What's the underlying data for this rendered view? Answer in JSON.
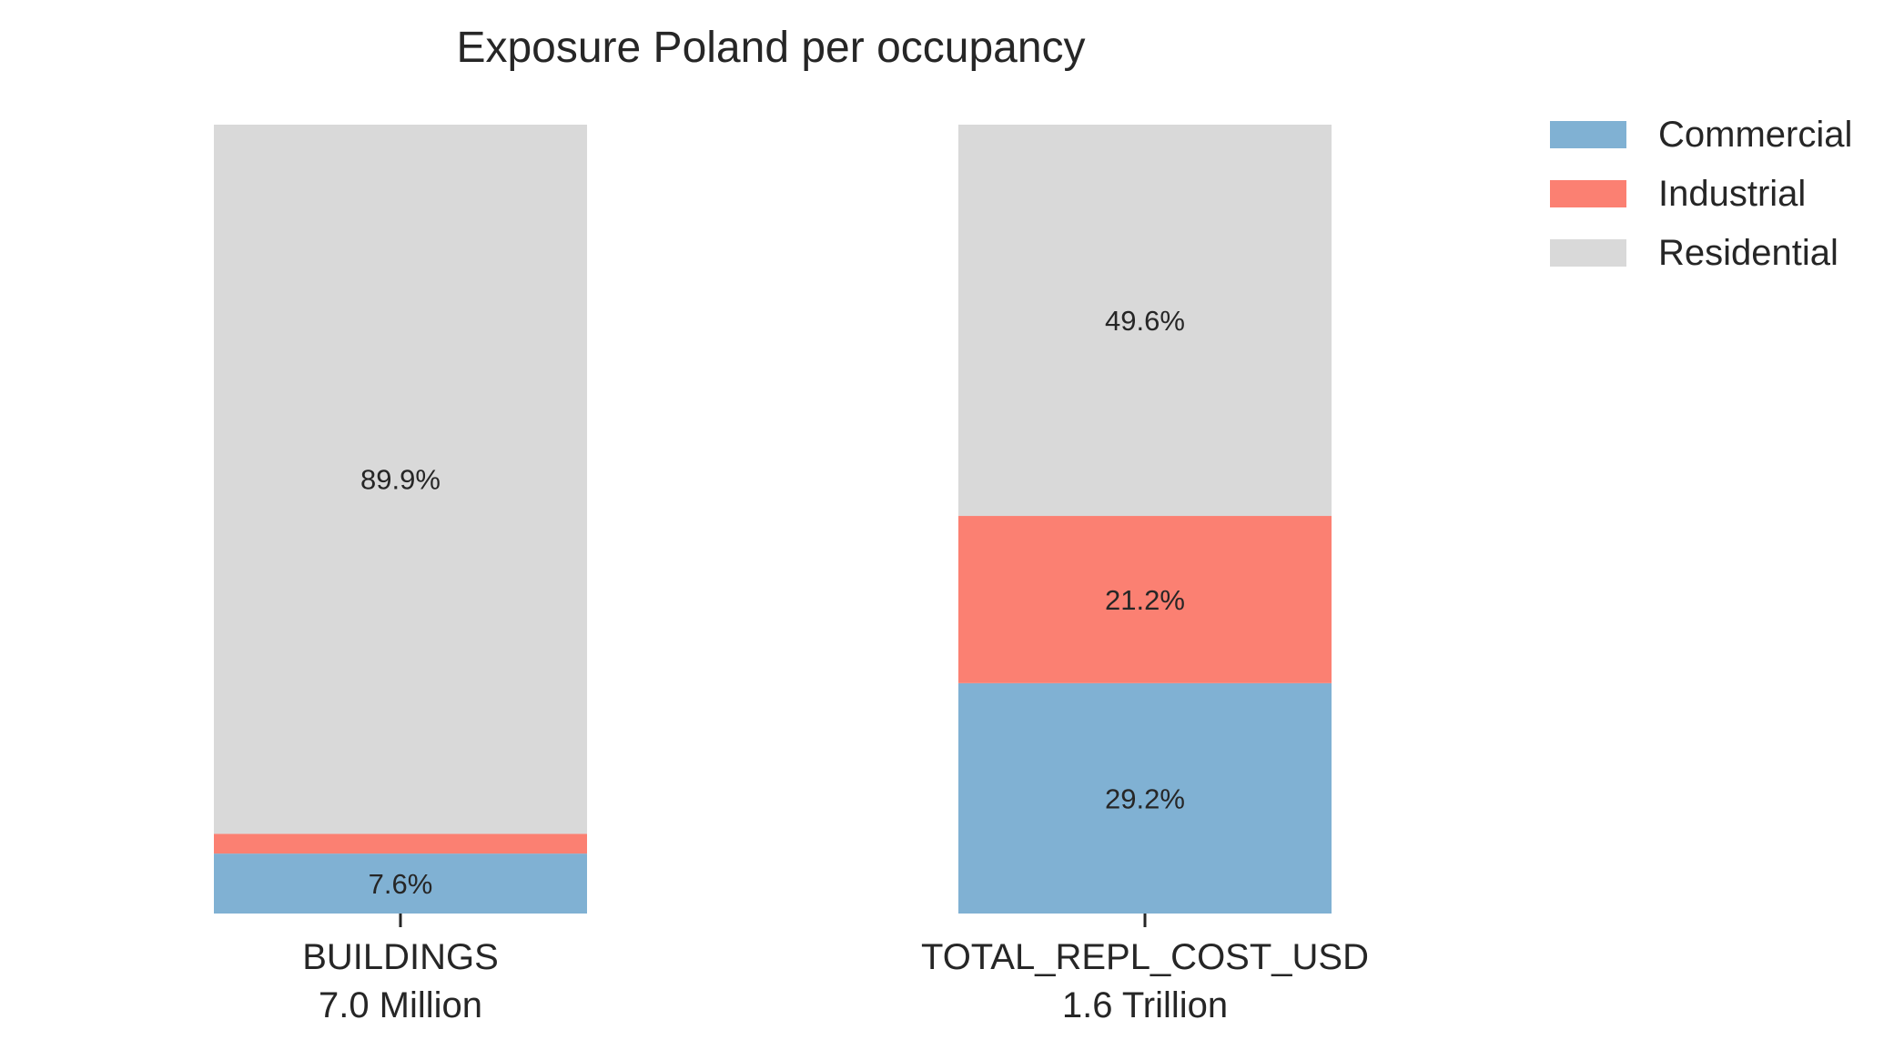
{
  "chart_data": {
    "type": "bar",
    "stacked": true,
    "title": "Exposure Poland per occupancy",
    "categories": [
      "BUILDINGS",
      "TOTAL_REPL_COST_USD"
    ],
    "category_totals": [
      "7.0 Million",
      "1.6 Trillion"
    ],
    "series": [
      {
        "name": "Commercial",
        "color": "#80b1d3",
        "values": [
          7.6,
          29.2
        ],
        "labels": [
          "7.6%",
          "29.2%"
        ]
      },
      {
        "name": "Industrial",
        "color": "#fb8072",
        "values": [
          2.5,
          21.2
        ],
        "labels": [
          "",
          "21.2%"
        ]
      },
      {
        "name": "Residential",
        "color": "#d9d9d9",
        "values": [
          89.9,
          49.6
        ],
        "labels": [
          "89.9%",
          "49.6%"
        ]
      }
    ],
    "ylim": [
      0,
      100
    ],
    "xlabel": "",
    "ylabel": "",
    "grid": false,
    "legend_position": "top-right"
  }
}
